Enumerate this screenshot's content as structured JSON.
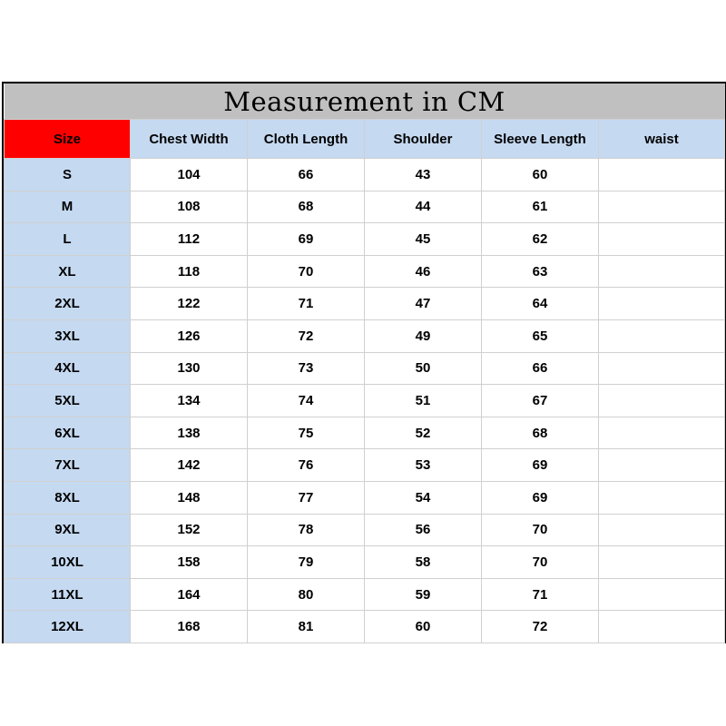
{
  "title": "Measurement in CM",
  "colors": {
    "size_header": "#ff0000",
    "header": "#c5d9f1",
    "title_bg": "#c0c0c0"
  },
  "headers": [
    "Size",
    "Chest Width",
    "Cloth Length",
    "Shoulder",
    "Sleeve Length",
    "waist"
  ],
  "rows": [
    [
      "S",
      "104",
      "66",
      "43",
      "60",
      ""
    ],
    [
      "M",
      "108",
      "68",
      "44",
      "61",
      ""
    ],
    [
      "L",
      "112",
      "69",
      "45",
      "62",
      ""
    ],
    [
      "XL",
      "118",
      "70",
      "46",
      "63",
      ""
    ],
    [
      "2XL",
      "122",
      "71",
      "47",
      "64",
      ""
    ],
    [
      "3XL",
      "126",
      "72",
      "49",
      "65",
      ""
    ],
    [
      "4XL",
      "130",
      "73",
      "50",
      "66",
      ""
    ],
    [
      "5XL",
      "134",
      "74",
      "51",
      "67",
      ""
    ],
    [
      "6XL",
      "138",
      "75",
      "52",
      "68",
      ""
    ],
    [
      "7XL",
      "142",
      "76",
      "53",
      "69",
      ""
    ],
    [
      "8XL",
      "148",
      "77",
      "54",
      "69",
      ""
    ],
    [
      "9XL",
      "152",
      "78",
      "56",
      "70",
      ""
    ],
    [
      "10XL",
      "158",
      "79",
      "58",
      "70",
      ""
    ],
    [
      "11XL",
      "164",
      "80",
      "59",
      "71",
      ""
    ],
    [
      "12XL",
      "168",
      "81",
      "60",
      "72",
      ""
    ]
  ]
}
